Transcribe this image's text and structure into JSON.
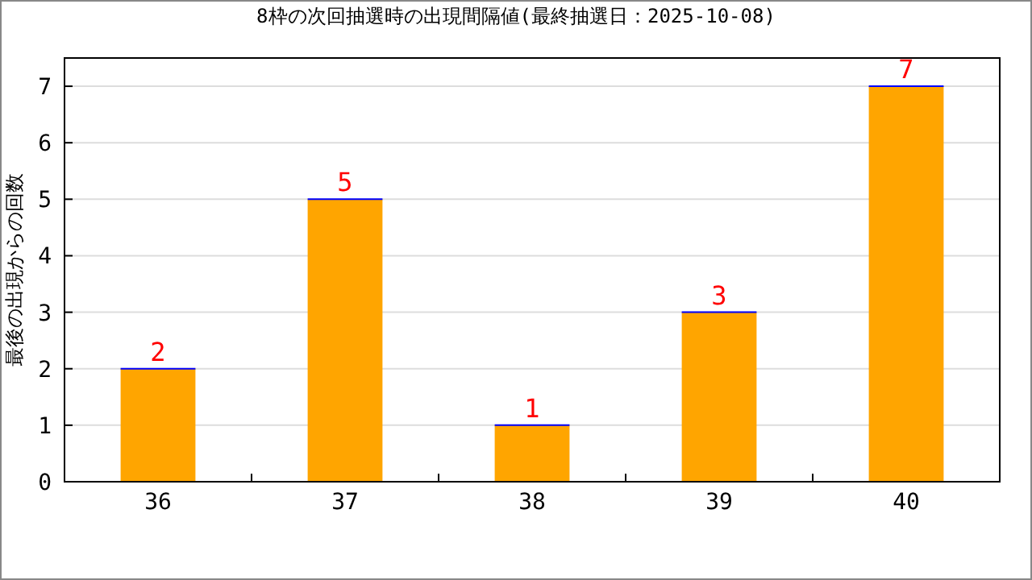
{
  "chart_data": {
    "type": "bar",
    "title": "8枠の次回抽選時の出現間隔値(最終抽選日：2025-10-08)",
    "ylabel": "最後の出現からの回数",
    "categories": [
      "36",
      "37",
      "38",
      "39",
      "40"
    ],
    "values": [
      2,
      5,
      1,
      3,
      7
    ],
    "color": "#ffa500",
    "ylim": [
      0,
      7.5
    ],
    "yticks": [
      0,
      1,
      2,
      3,
      4,
      5,
      6,
      7
    ],
    "grid": "y",
    "data_labels": true
  }
}
